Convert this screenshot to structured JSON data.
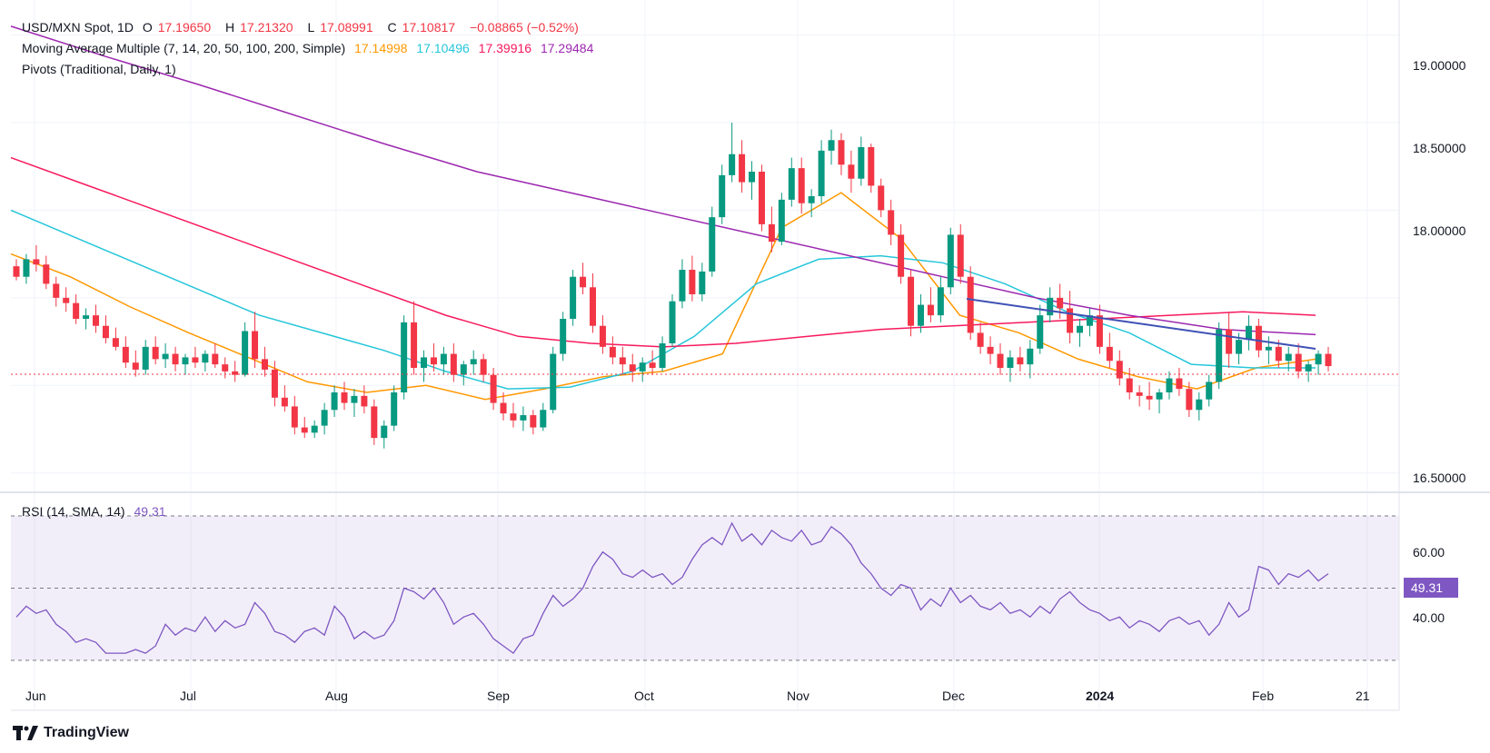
{
  "header": {
    "line1": {
      "symbol": "USD/MXN Spot, 1D",
      "open_label": "O",
      "open": "17.19650",
      "high_label": "H",
      "high": "17.21320",
      "low_label": "L",
      "low": "17.08991",
      "close_label": "C",
      "close": "17.10817",
      "change": "−0.08865 (−0.52%)"
    },
    "line2": {
      "title": "Moving Average Multiple (7, 14, 20, 50, 100, 200, Simple)",
      "v1": "17.14998",
      "v2": "17.10496",
      "v3": "17.39916",
      "v4": "17.29484"
    },
    "line3": {
      "title": "Pivots (Traditional, Daily, 1)"
    }
  },
  "price_tags": [
    {
      "text": "17.39916",
      "color": "#f7195e"
    },
    {
      "text": "17.29484",
      "color": "#9c27b0"
    },
    {
      "text": "17.14998",
      "color": "#ff9800"
    },
    {
      "text": "17.10817",
      "color": "#f23645"
    },
    {
      "text": "17.10496",
      "color": "#26c6da"
    }
  ],
  "price_axis": [
    "19.00000",
    "18.50000",
    "18.00000",
    "16.50000"
  ],
  "rsi": {
    "label": "RSI (14, SMA, 14)",
    "value": "49.31",
    "axis": [
      "60.00",
      "40.00"
    ]
  },
  "time_axis": [
    "Jun",
    "Jul",
    "Aug",
    "Sep",
    "Oct",
    "Nov",
    "Dec",
    "2024",
    "Feb",
    "21"
  ],
  "brand": "TradingView",
  "colors": {
    "up": "#089981",
    "down": "#f23645",
    "ma_orange": "#ff9800",
    "ma_cyan": "#26c6da",
    "ma_red": "#f7195e",
    "ma_purple": "#9c27b0",
    "trendline": "#3f51b5",
    "rsi_line": "#7e57c2",
    "rsi_band": "#7e57c2"
  },
  "chart_data": {
    "type": "candlestick",
    "title": "USD/MXN Spot, 1D",
    "ylim": [
      16.4,
      19.2
    ],
    "x_months": [
      "Jun",
      "Jul",
      "Aug",
      "Sep",
      "Oct",
      "Nov",
      "Dec",
      "2024",
      "Feb",
      "21"
    ],
    "candles_ohlc": [
      [
        17.68,
        17.72,
        17.6,
        17.62
      ],
      [
        17.62,
        17.75,
        17.58,
        17.72
      ],
      [
        17.72,
        17.8,
        17.65,
        17.69
      ],
      [
        17.69,
        17.74,
        17.55,
        17.58
      ],
      [
        17.58,
        17.62,
        17.45,
        17.5
      ],
      [
        17.5,
        17.56,
        17.42,
        17.47
      ],
      [
        17.47,
        17.52,
        17.35,
        17.38
      ],
      [
        17.38,
        17.44,
        17.32,
        17.4
      ],
      [
        17.4,
        17.46,
        17.3,
        17.34
      ],
      [
        17.34,
        17.4,
        17.24,
        17.27
      ],
      [
        17.27,
        17.33,
        17.2,
        17.22
      ],
      [
        17.22,
        17.28,
        17.1,
        17.13
      ],
      [
        17.13,
        17.2,
        17.05,
        17.09
      ],
      [
        17.09,
        17.26,
        17.06,
        17.22
      ],
      [
        17.22,
        17.28,
        17.12,
        17.15
      ],
      [
        17.15,
        17.24,
        17.1,
        17.18
      ],
      [
        17.18,
        17.22,
        17.08,
        17.12
      ],
      [
        17.12,
        17.18,
        17.06,
        17.16
      ],
      [
        17.16,
        17.22,
        17.1,
        17.13
      ],
      [
        17.13,
        17.2,
        17.08,
        17.18
      ],
      [
        17.18,
        17.24,
        17.1,
        17.12
      ],
      [
        17.12,
        17.16,
        17.04,
        17.08
      ],
      [
        17.08,
        17.14,
        17.02,
        17.06
      ],
      [
        17.06,
        17.36,
        17.05,
        17.31
      ],
      [
        17.31,
        17.42,
        17.1,
        17.15
      ],
      [
        17.15,
        17.22,
        17.05,
        17.09
      ],
      [
        17.09,
        17.14,
        16.88,
        16.93
      ],
      [
        16.93,
        17.0,
        16.85,
        16.88
      ],
      [
        16.88,
        16.94,
        16.72,
        16.76
      ],
      [
        16.76,
        16.82,
        16.7,
        16.73
      ],
      [
        16.73,
        16.8,
        16.7,
        16.77
      ],
      [
        16.77,
        16.9,
        16.72,
        16.86
      ],
      [
        16.86,
        17.0,
        16.82,
        16.96
      ],
      [
        16.96,
        17.02,
        16.86,
        16.9
      ],
      [
        16.9,
        16.98,
        16.82,
        16.94
      ],
      [
        16.94,
        17.0,
        16.84,
        16.88
      ],
      [
        16.88,
        16.92,
        16.66,
        16.7
      ],
      [
        16.7,
        16.8,
        16.64,
        16.77
      ],
      [
        16.77,
        17.0,
        16.74,
        16.96
      ],
      [
        16.96,
        17.4,
        16.92,
        17.36
      ],
      [
        17.36,
        17.48,
        17.06,
        17.1
      ],
      [
        17.1,
        17.2,
        17.02,
        17.16
      ],
      [
        17.16,
        17.24,
        17.08,
        17.12
      ],
      [
        17.12,
        17.22,
        17.06,
        17.18
      ],
      [
        17.18,
        17.24,
        17.02,
        17.06
      ],
      [
        17.06,
        17.14,
        17.0,
        17.12
      ],
      [
        17.12,
        17.2,
        17.06,
        17.15
      ],
      [
        17.15,
        17.18,
        17.02,
        17.06
      ],
      [
        17.06,
        17.1,
        16.86,
        16.9
      ],
      [
        16.9,
        16.96,
        16.8,
        16.84
      ],
      [
        16.84,
        16.9,
        16.76,
        16.8
      ],
      [
        16.8,
        16.88,
        16.74,
        16.83
      ],
      [
        16.83,
        16.86,
        16.72,
        16.76
      ],
      [
        16.76,
        16.9,
        16.74,
        16.86
      ],
      [
        16.86,
        17.22,
        16.84,
        17.18
      ],
      [
        17.18,
        17.42,
        17.14,
        17.38
      ],
      [
        17.38,
        17.66,
        17.34,
        17.62
      ],
      [
        17.62,
        17.7,
        17.52,
        17.56
      ],
      [
        17.56,
        17.64,
        17.3,
        17.34
      ],
      [
        17.34,
        17.4,
        17.18,
        17.22
      ],
      [
        17.22,
        17.28,
        17.12,
        17.16
      ],
      [
        17.16,
        17.22,
        17.06,
        17.12
      ],
      [
        17.12,
        17.18,
        17.02,
        17.08
      ],
      [
        17.08,
        17.16,
        17.02,
        17.13
      ],
      [
        17.13,
        17.2,
        17.06,
        17.1
      ],
      [
        17.1,
        17.28,
        17.08,
        17.24
      ],
      [
        17.24,
        17.52,
        17.22,
        17.48
      ],
      [
        17.48,
        17.72,
        17.44,
        17.66
      ],
      [
        17.66,
        17.74,
        17.48,
        17.52
      ],
      [
        17.52,
        17.7,
        17.48,
        17.65
      ],
      [
        17.65,
        18.02,
        17.62,
        17.96
      ],
      [
        17.96,
        18.26,
        17.92,
        18.2
      ],
      [
        18.2,
        18.5,
        18.16,
        18.32
      ],
      [
        18.32,
        18.4,
        18.1,
        18.16
      ],
      [
        18.16,
        18.28,
        18.06,
        18.22
      ],
      [
        18.22,
        18.26,
        17.88,
        17.92
      ],
      [
        17.92,
        18.02,
        17.76,
        17.82
      ],
      [
        17.82,
        18.1,
        17.8,
        18.06
      ],
      [
        18.06,
        18.3,
        18.02,
        18.24
      ],
      [
        18.24,
        18.3,
        17.98,
        18.04
      ],
      [
        18.04,
        18.12,
        17.96,
        18.08
      ],
      [
        18.08,
        18.4,
        18.04,
        18.34
      ],
      [
        18.34,
        18.46,
        18.26,
        18.4
      ],
      [
        18.4,
        18.44,
        18.2,
        18.26
      ],
      [
        18.26,
        18.34,
        18.1,
        18.18
      ],
      [
        18.18,
        18.42,
        18.14,
        18.36
      ],
      [
        18.36,
        18.38,
        18.1,
        18.14
      ],
      [
        18.14,
        18.18,
        17.96,
        18.0
      ],
      [
        18.0,
        18.06,
        17.8,
        17.86
      ],
      [
        17.86,
        17.92,
        17.58,
        17.62
      ],
      [
        17.62,
        17.66,
        17.28,
        17.34
      ],
      [
        17.34,
        17.52,
        17.3,
        17.46
      ],
      [
        17.46,
        17.56,
        17.36,
        17.4
      ],
      [
        17.4,
        17.62,
        17.36,
        17.56
      ],
      [
        17.56,
        17.9,
        17.52,
        17.86
      ],
      [
        17.86,
        17.92,
        17.58,
        17.62
      ],
      [
        17.62,
        17.68,
        17.26,
        17.3
      ],
      [
        17.3,
        17.36,
        17.18,
        17.22
      ],
      [
        17.22,
        17.28,
        17.12,
        17.18
      ],
      [
        17.18,
        17.24,
        17.06,
        17.1
      ],
      [
        17.1,
        17.2,
        17.02,
        17.16
      ],
      [
        17.16,
        17.22,
        17.08,
        17.12
      ],
      [
        17.12,
        17.26,
        17.04,
        17.21
      ],
      [
        17.21,
        17.46,
        17.18,
        17.4
      ],
      [
        17.4,
        17.56,
        17.36,
        17.5
      ],
      [
        17.5,
        17.58,
        17.38,
        17.44
      ],
      [
        17.44,
        17.54,
        17.24,
        17.3
      ],
      [
        17.3,
        17.38,
        17.22,
        17.34
      ],
      [
        17.34,
        17.44,
        17.28,
        17.4
      ],
      [
        17.4,
        17.46,
        17.18,
        17.22
      ],
      [
        17.22,
        17.3,
        17.1,
        17.14
      ],
      [
        17.14,
        17.2,
        17.0,
        17.04
      ],
      [
        17.04,
        17.1,
        16.92,
        16.96
      ],
      [
        16.96,
        17.0,
        16.88,
        16.94
      ],
      [
        16.94,
        17.02,
        16.86,
        16.92
      ],
      [
        16.92,
        16.98,
        16.84,
        16.96
      ],
      [
        16.96,
        17.08,
        16.92,
        17.04
      ],
      [
        17.04,
        17.1,
        16.94,
        16.98
      ],
      [
        16.98,
        17.02,
        16.82,
        16.86
      ],
      [
        16.86,
        16.96,
        16.8,
        16.92
      ],
      [
        16.92,
        17.06,
        16.88,
        17.02
      ],
      [
        17.02,
        17.36,
        16.98,
        17.32
      ],
      [
        17.32,
        17.42,
        17.1,
        17.18
      ],
      [
        17.18,
        17.3,
        17.12,
        17.26
      ],
      [
        17.26,
        17.4,
        17.2,
        17.34
      ],
      [
        17.34,
        17.38,
        17.16,
        17.2
      ],
      [
        17.2,
        17.28,
        17.12,
        17.22
      ],
      [
        17.22,
        17.26,
        17.1,
        17.14
      ],
      [
        17.14,
        17.22,
        17.08,
        17.18
      ],
      [
        17.18,
        17.24,
        17.04,
        17.08
      ],
      [
        17.08,
        17.14,
        17.02,
        17.12
      ],
      [
        17.12,
        17.2,
        17.06,
        17.18
      ],
      [
        17.18,
        17.22,
        17.08,
        17.11
      ]
    ],
    "ma_series": [
      {
        "name": "17.14998",
        "color": "#ff9800",
        "values": [
          17.75,
          17.62,
          17.45,
          17.3,
          17.16,
          17.02,
          16.96,
          17.0,
          16.92,
          16.98,
          17.05,
          17.08,
          17.18,
          17.9,
          18.1,
          17.84,
          17.4,
          17.3,
          17.15,
          17.05,
          16.98,
          17.1,
          17.15
        ]
      },
      {
        "name": "17.10496",
        "color": "#26c6da",
        "values": [
          18.0,
          17.85,
          17.7,
          17.55,
          17.4,
          17.3,
          17.2,
          17.08,
          16.98,
          16.99,
          17.08,
          17.28,
          17.58,
          17.72,
          17.74,
          17.7,
          17.58,
          17.42,
          17.3,
          17.12,
          17.1,
          17.1
        ]
      },
      {
        "name": "17.39916",
        "color": "#f7195e",
        "values": [
          18.3,
          18.15,
          18.0,
          17.85,
          17.7,
          17.55,
          17.4,
          17.28,
          17.24,
          17.22,
          17.24,
          17.28,
          17.32,
          17.34,
          17.36,
          17.38,
          17.4,
          17.42,
          17.4
        ]
      },
      {
        "name": "17.29484",
        "color": "#9c27b0",
        "values": [
          19.05,
          18.88,
          18.72,
          18.55,
          18.38,
          18.22,
          18.1,
          17.98,
          17.86,
          17.74,
          17.62,
          17.5,
          17.4,
          17.32,
          17.29
        ]
      }
    ],
    "rsi": {
      "name": "RSI (14, SMA, 14)",
      "last": 49.31,
      "ylim": [
        28,
        72
      ]
    }
  }
}
